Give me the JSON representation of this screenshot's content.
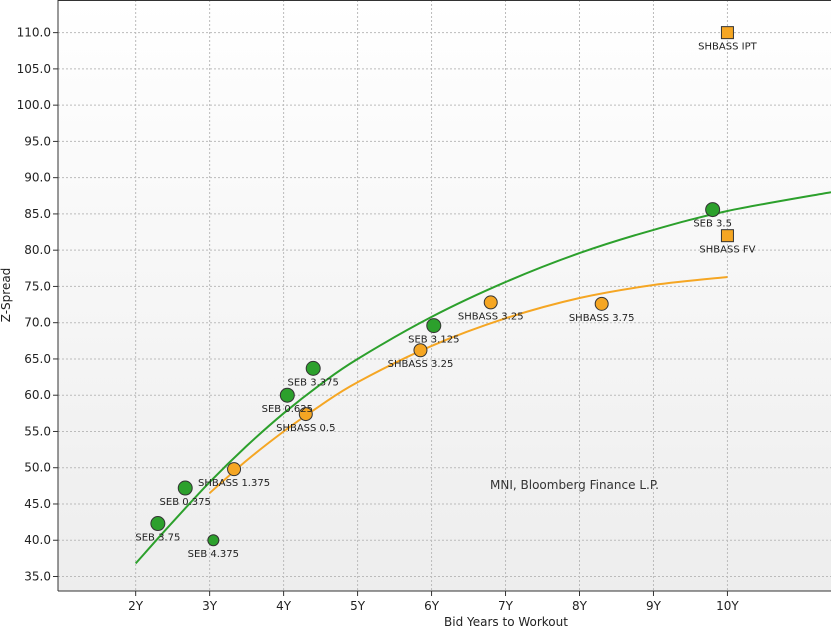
{
  "chart_data": {
    "type": "scatter",
    "xlabel": "Bid Years to Workout",
    "ylabel": "Z-Spread",
    "source_note": "MNI, Bloomberg Finance L.P.",
    "xlim": [
      0.95,
      11.4
    ],
    "ylim": [
      33,
      114.5
    ],
    "x_ticks": [
      {
        "v": 2,
        "label": "2Y"
      },
      {
        "v": 3,
        "label": "3Y"
      },
      {
        "v": 4,
        "label": "4Y"
      },
      {
        "v": 5,
        "label": "5Y"
      },
      {
        "v": 6,
        "label": "6Y"
      },
      {
        "v": 7,
        "label": "7Y"
      },
      {
        "v": 8,
        "label": "8Y"
      },
      {
        "v": 9,
        "label": "9Y"
      },
      {
        "v": 10,
        "label": "10Y"
      }
    ],
    "y_ticks": [
      {
        "v": 35,
        "label": "35.0"
      },
      {
        "v": 40,
        "label": "40.0"
      },
      {
        "v": 45,
        "label": "45.0"
      },
      {
        "v": 50,
        "label": "50.0"
      },
      {
        "v": 55,
        "label": "55.0"
      },
      {
        "v": 60,
        "label": "60.0"
      },
      {
        "v": 65,
        "label": "65.0"
      },
      {
        "v": 70,
        "label": "70.0"
      },
      {
        "v": 75,
        "label": "75.0"
      },
      {
        "v": 80,
        "label": "80.0"
      },
      {
        "v": 85,
        "label": "85.0"
      },
      {
        "v": 90,
        "label": "90.0"
      },
      {
        "v": 95,
        "label": "95.0"
      },
      {
        "v": 100,
        "label": "100.0"
      },
      {
        "v": 105,
        "label": "105.0"
      },
      {
        "v": 110,
        "label": "110.0"
      }
    ],
    "grid": true,
    "colors": {
      "seb": "#2ca02c",
      "shbass": "#f5a623",
      "marker_edge": "#333333",
      "grid": "#bbbbbb"
    },
    "series": [
      {
        "group": "seb",
        "points": [
          {
            "x": 2.3,
            "y": 42.3,
            "label": "SEB 3.75"
          },
          {
            "x": 2.67,
            "y": 47.2,
            "label": "SEB 0.375"
          },
          {
            "x": 3.05,
            "y": 40.0,
            "label": "SEB 4.375"
          },
          {
            "x": 4.05,
            "y": 60.0,
            "label": "SEB 0.625"
          },
          {
            "x": 4.4,
            "y": 63.7,
            "label": "SEB 3.375"
          },
          {
            "x": 6.03,
            "y": 69.6,
            "label": "SEB 3.125"
          },
          {
            "x": 9.8,
            "y": 85.6,
            "label": "SEB 3.5"
          }
        ],
        "curve": [
          {
            "x": 2.0,
            "y": 36.8
          },
          {
            "x": 2.5,
            "y": 42.5
          },
          {
            "x": 3.0,
            "y": 48.0
          },
          {
            "x": 3.5,
            "y": 53.0
          },
          {
            "x": 4.0,
            "y": 57.5
          },
          {
            "x": 4.5,
            "y": 61.5
          },
          {
            "x": 5.0,
            "y": 65.0
          },
          {
            "x": 6.0,
            "y": 70.8
          },
          {
            "x": 7.0,
            "y": 75.6
          },
          {
            "x": 8.0,
            "y": 79.6
          },
          {
            "x": 9.0,
            "y": 82.8
          },
          {
            "x": 10.0,
            "y": 85.4
          },
          {
            "x": 11.4,
            "y": 88.0
          }
        ]
      },
      {
        "group": "shbass",
        "points": [
          {
            "x": 3.33,
            "y": 49.8,
            "label": "SHBASS 1.375"
          },
          {
            "x": 4.3,
            "y": 57.4,
            "label": "SHBASS 0.5"
          },
          {
            "x": 5.85,
            "y": 66.2,
            "label": "SHBASS 3.25"
          },
          {
            "x": 6.8,
            "y": 72.8,
            "label": "SHBASS 3.25"
          },
          {
            "x": 8.3,
            "y": 72.6,
            "label": "SHBASS 3.75"
          }
        ],
        "curve": [
          {
            "x": 3.0,
            "y": 46.5
          },
          {
            "x": 3.5,
            "y": 51.0
          },
          {
            "x": 4.0,
            "y": 55.0
          },
          {
            "x": 4.5,
            "y": 58.6
          },
          {
            "x": 5.0,
            "y": 61.8
          },
          {
            "x": 6.0,
            "y": 66.8
          },
          {
            "x": 7.0,
            "y": 70.6
          },
          {
            "x": 8.0,
            "y": 73.4
          },
          {
            "x": 9.0,
            "y": 75.2
          },
          {
            "x": 10.0,
            "y": 76.3
          }
        ]
      },
      {
        "group": "shbass",
        "marker": "square",
        "points": [
          {
            "x": 10.0,
            "y": 110.0,
            "label": "SHBASS IPT"
          },
          {
            "x": 10.0,
            "y": 82.0,
            "label": "SHBASS FV"
          }
        ]
      }
    ]
  }
}
